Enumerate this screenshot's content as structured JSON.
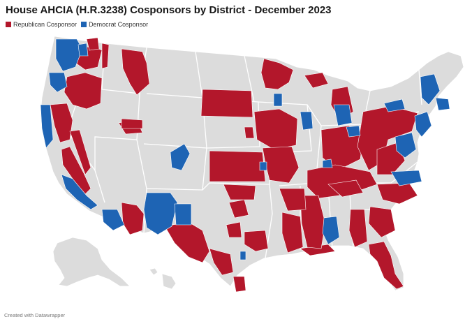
{
  "title": "House AHCIA (H.R.3238) Cosponsors by District - December 2023",
  "legend": {
    "republican": {
      "label": "Republican Cosponsor",
      "color": "#b3172b"
    },
    "democrat": {
      "label": "Democrat Cosponsor",
      "color": "#1e64b4"
    }
  },
  "colors": {
    "no_cosponsor": "#dcdcdc",
    "border": "#ffffff"
  },
  "credit": "Created with Datawrapper"
}
